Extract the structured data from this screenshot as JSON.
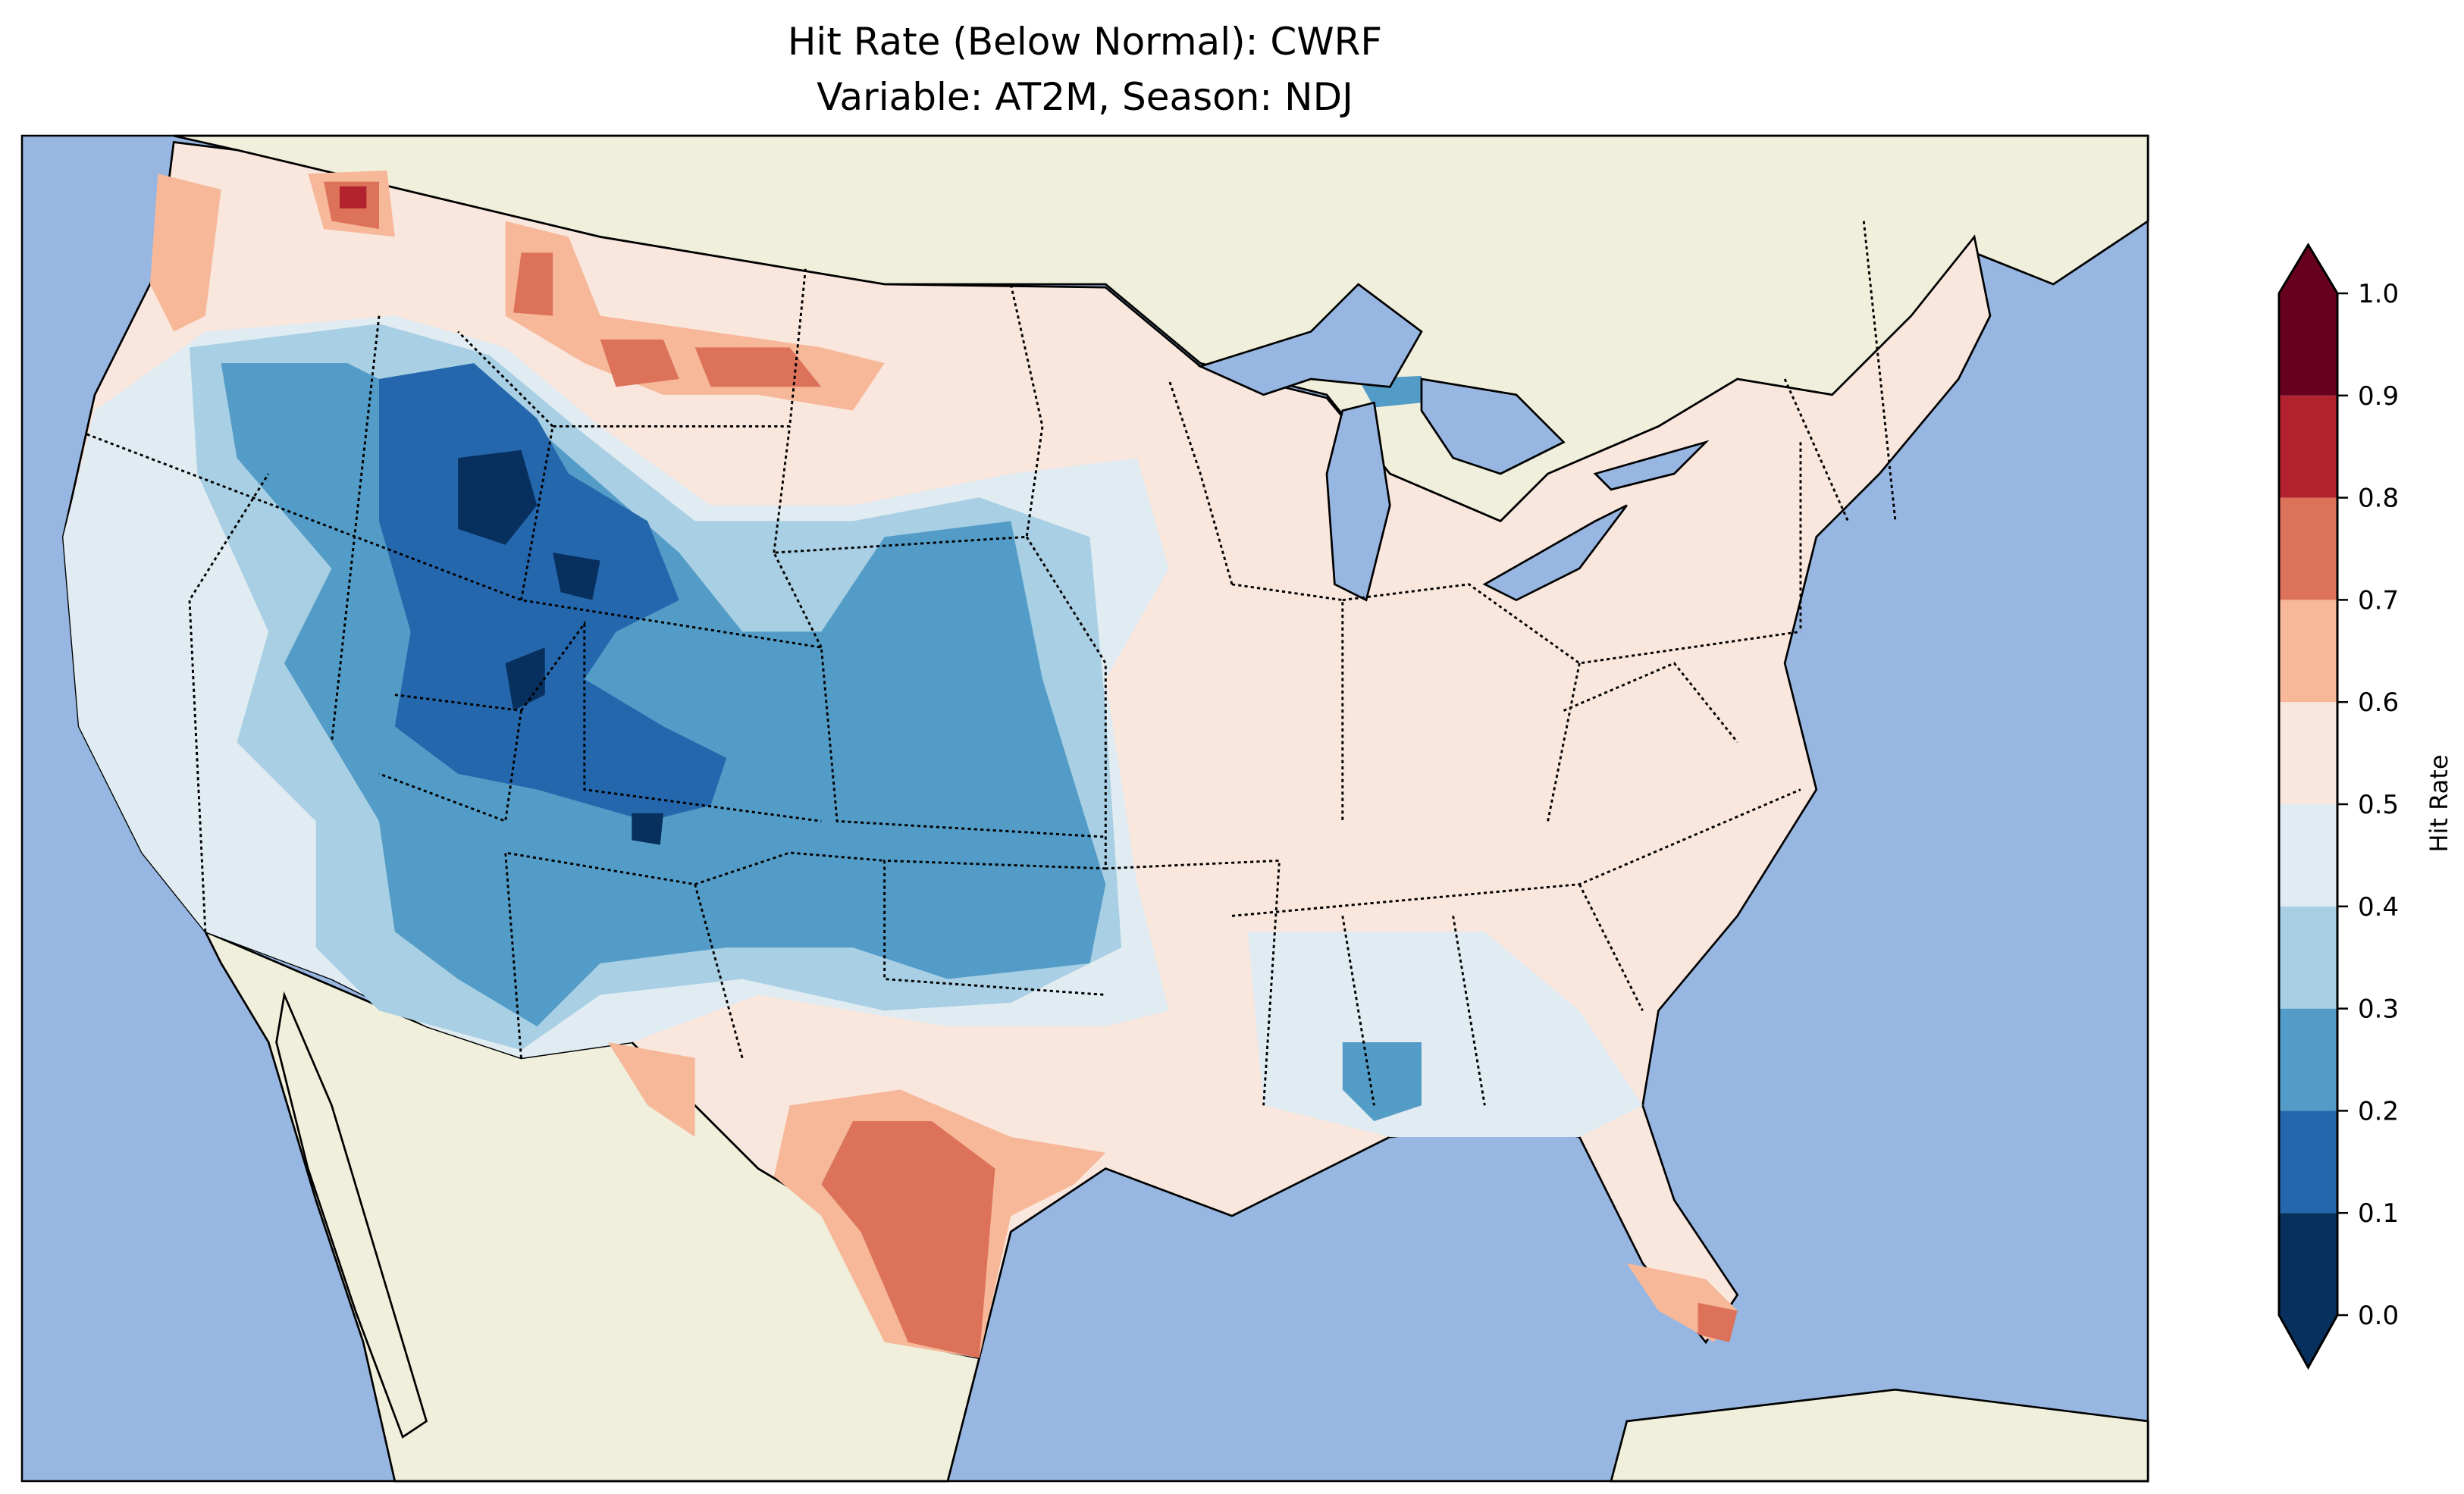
{
  "title": {
    "line1": "Hit Rate (Below Normal): CWRF",
    "line2": "Variable: AT2M, Season: NDJ"
  },
  "colors": {
    "ocean": "#97b6e1",
    "land": "#efefdb"
  },
  "chart_data": {
    "type": "heatmap",
    "title": "Hit Rate (Below Normal): CWRF\nVariable: AT2M, Season: NDJ",
    "region": "Contiguous United States",
    "colorbar": {
      "label": "Hit Rate",
      "range": [
        0.0,
        1.0
      ],
      "extend": "both",
      "ticks": [
        "0.0",
        "0.1",
        "0.2",
        "0.3",
        "0.4",
        "0.5",
        "0.6",
        "0.7",
        "0.8",
        "0.9",
        "1.0"
      ],
      "bins": [
        {
          "range": [
            0.0,
            0.1
          ],
          "color": "#08305e"
        },
        {
          "range": [
            0.1,
            0.2
          ],
          "color": "#2467ac"
        },
        {
          "range": [
            0.2,
            0.3
          ],
          "color": "#529cc7"
        },
        {
          "range": [
            0.3,
            0.4
          ],
          "color": "#a8cfe3"
        },
        {
          "range": [
            0.4,
            0.5
          ],
          "color": "#e0ebf2"
        },
        {
          "range": [
            0.5,
            0.6
          ],
          "color": "#f9e6dd"
        },
        {
          "range": [
            0.6,
            0.7
          ],
          "color": "#f6b899"
        },
        {
          "range": [
            0.7,
            0.8
          ],
          "color": "#dd725a"
        },
        {
          "range": [
            0.8,
            0.9
          ],
          "color": "#b2222f"
        },
        {
          "range": [
            0.9,
            1.0
          ],
          "color": "#67001f"
        }
      ]
    },
    "summary_regions": [
      {
        "area": "Rockies / Great Basin / Southern Plains",
        "range": [
          0.0,
          0.4
        ]
      },
      {
        "area": "East, Midwest, Southeast",
        "range": [
          0.5,
          0.6
        ]
      },
      {
        "area": "South Texas",
        "range": [
          0.7,
          0.8
        ]
      },
      {
        "area": "Northern Montana / North Dakota",
        "range": [
          0.6,
          0.8
        ]
      },
      {
        "area": "Northern Idaho border",
        "range": [
          0.8,
          0.9
        ]
      }
    ]
  }
}
